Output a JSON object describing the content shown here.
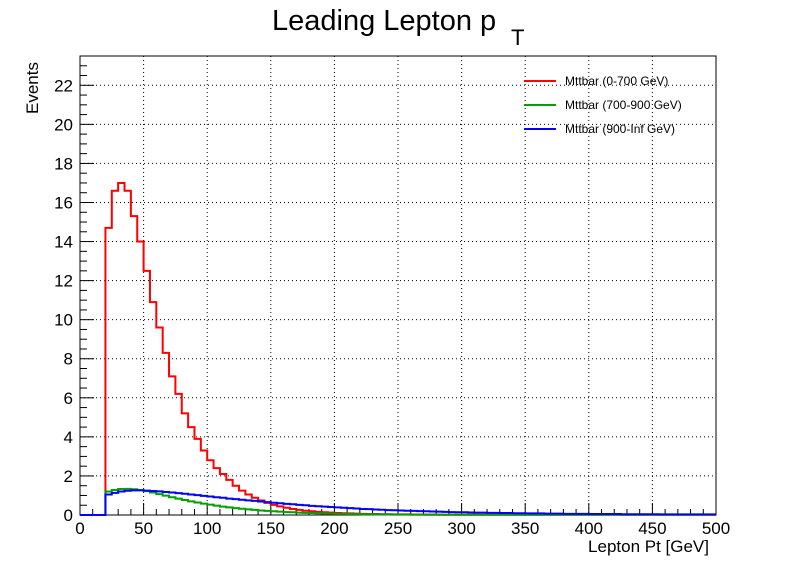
{
  "chart_data": {
    "type": "line",
    "title": "Leading Lepton p",
    "title_subscript": "T",
    "xlabel": "Lepton Pt [GeV]",
    "ylabel": "Events",
    "xlim": [
      0,
      500
    ],
    "ylim": [
      0,
      23.5
    ],
    "x_ticks": [
      0,
      50,
      100,
      150,
      200,
      250,
      300,
      350,
      400,
      450,
      500
    ],
    "y_ticks": [
      0,
      2,
      4,
      6,
      8,
      10,
      12,
      14,
      16,
      18,
      20,
      22
    ],
    "grid": true,
    "legend_position": "top-right",
    "histogram_style": "step",
    "bin_width": 5,
    "series": [
      {
        "name": "Mttbar (0-700 GeV)",
        "color": "#ff0000",
        "values": [
          0,
          0,
          0,
          0,
          14.7,
          16.6,
          17.0,
          16.6,
          15.3,
          14.0,
          12.5,
          10.9,
          9.6,
          8.3,
          7.1,
          6.2,
          5.2,
          4.5,
          3.9,
          3.3,
          2.8,
          2.4,
          2.1,
          1.8,
          1.5,
          1.25,
          1.05,
          0.88,
          0.74,
          0.62,
          0.52,
          0.44,
          0.37,
          0.31,
          0.26,
          0.22,
          0.19,
          0.16,
          0.14,
          0.12,
          0.1,
          0.09,
          0.08,
          0.07,
          0.06,
          0.05,
          0.05,
          0.04,
          0.04,
          0.03,
          0.03,
          0.03,
          0.02,
          0.02,
          0.02,
          0.02,
          0.02,
          0.01,
          0.01,
          0.01,
          0.01,
          0.01,
          0.01,
          0.01,
          0.01,
          0.01,
          0.01,
          0.01,
          0.01,
          0.01,
          0.01,
          0.01,
          0.01,
          0.01,
          0.01,
          0.01,
          0.01,
          0.01,
          0.01,
          0.01,
          0.01,
          0.01,
          0.01,
          0.01,
          0.01,
          0.01,
          0.01,
          0.01,
          0.01,
          0.01,
          0.01,
          0.01,
          0.01,
          0.01,
          0.01,
          0.01,
          0.01,
          0.01,
          0.01,
          0.01
        ]
      },
      {
        "name": "Mttbar (700-900 GeV)",
        "color": "#00a000",
        "values": [
          0,
          0,
          0,
          0,
          1.2,
          1.28,
          1.33,
          1.34,
          1.32,
          1.28,
          1.22,
          1.15,
          1.07,
          0.99,
          0.91,
          0.84,
          0.77,
          0.7,
          0.64,
          0.58,
          0.53,
          0.48,
          0.43,
          0.39,
          0.35,
          0.32,
          0.29,
          0.26,
          0.23,
          0.21,
          0.19,
          0.17,
          0.15,
          0.14,
          0.12,
          0.11,
          0.1,
          0.09,
          0.08,
          0.07,
          0.06,
          0.06,
          0.05,
          0.05,
          0.04,
          0.04,
          0.03,
          0.03,
          0.03,
          0.02,
          0.02,
          0.02,
          0.02,
          0.02,
          0.01,
          0.01,
          0.01,
          0.01,
          0.01,
          0.01,
          0.01,
          0.01,
          0.01,
          0.01,
          0.01,
          0.01,
          0.01,
          0.01,
          0.01,
          0.01,
          0.01,
          0.01,
          0.01,
          0.01,
          0.01,
          0.01,
          0.01,
          0.01,
          0.01,
          0.01,
          0.01,
          0.01,
          0.01,
          0.01,
          0.01,
          0.01,
          0.01,
          0.01,
          0.01,
          0.01,
          0.01,
          0.01,
          0.01,
          0.01,
          0.01,
          0.01,
          0.01,
          0.01,
          0.01,
          0.01
        ]
      },
      {
        "name": "Mttbar (900-Inf GeV)",
        "color": "#0000ff",
        "values": [
          0,
          0,
          0,
          0,
          1.05,
          1.13,
          1.2,
          1.24,
          1.26,
          1.26,
          1.25,
          1.23,
          1.21,
          1.18,
          1.15,
          1.12,
          1.09,
          1.05,
          1.02,
          0.98,
          0.95,
          0.91,
          0.88,
          0.84,
          0.81,
          0.78,
          0.75,
          0.72,
          0.69,
          0.66,
          0.63,
          0.6,
          0.57,
          0.55,
          0.52,
          0.5,
          0.47,
          0.45,
          0.43,
          0.41,
          0.39,
          0.37,
          0.35,
          0.33,
          0.31,
          0.3,
          0.28,
          0.27,
          0.25,
          0.24,
          0.23,
          0.22,
          0.21,
          0.2,
          0.19,
          0.18,
          0.17,
          0.16,
          0.15,
          0.14,
          0.14,
          0.13,
          0.12,
          0.12,
          0.11,
          0.11,
          0.1,
          0.1,
          0.09,
          0.09,
          0.08,
          0.08,
          0.08,
          0.07,
          0.07,
          0.07,
          0.06,
          0.06,
          0.06,
          0.06,
          0.05,
          0.05,
          0.05,
          0.05,
          0.05,
          0.04,
          0.04,
          0.04,
          0.04,
          0.04,
          0.04,
          0.03,
          0.03,
          0.03,
          0.03,
          0.03,
          0.03,
          0.03,
          0.03,
          0.03
        ]
      }
    ]
  }
}
